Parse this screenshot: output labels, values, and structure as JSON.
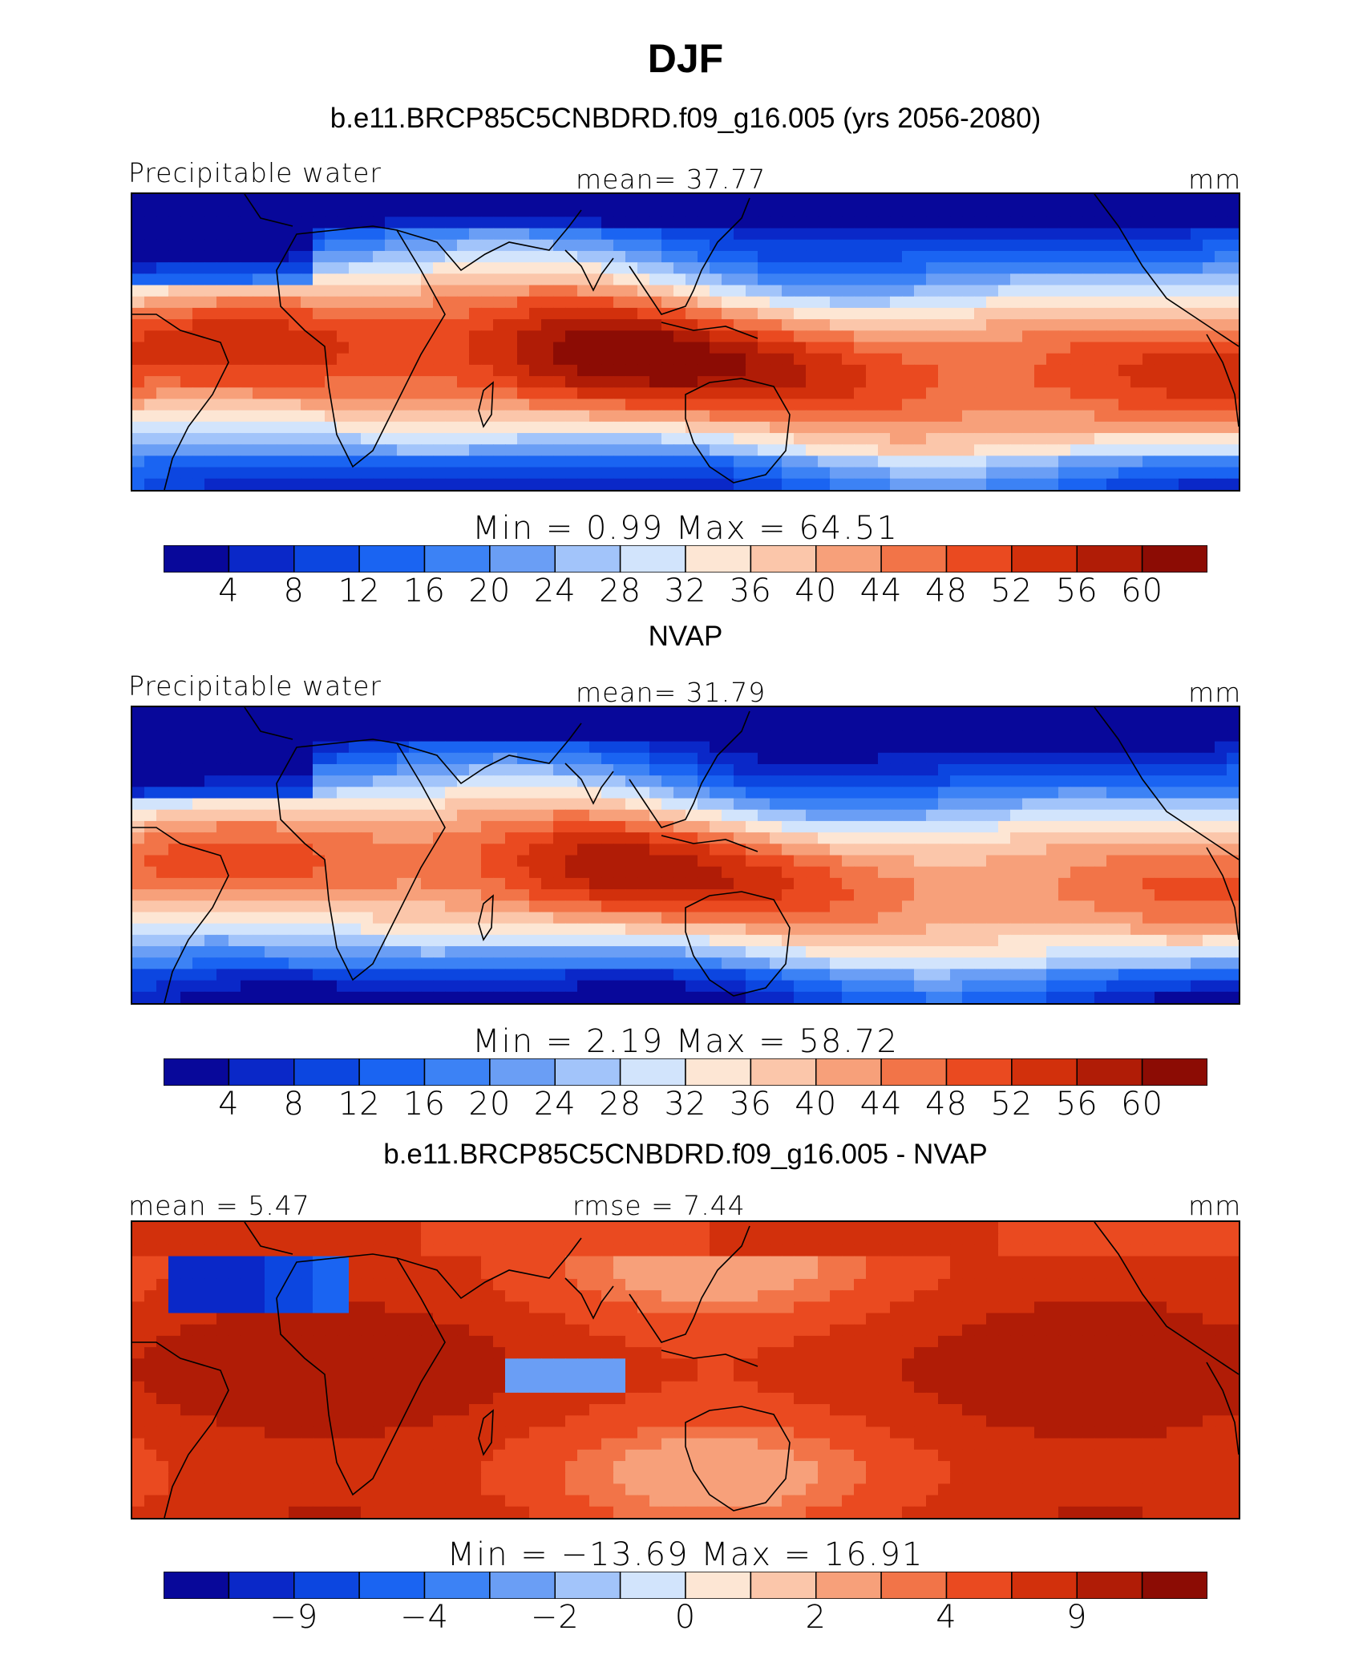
{
  "title": "DJF",
  "palette": [
    "#08089a",
    "#0a28c8",
    "#0c46e0",
    "#1a64f2",
    "#3c82f5",
    "#6a9ef5",
    "#a2c4fa",
    "#d2e4fc",
    "#fde6d4",
    "#fbc6aa",
    "#f7a07a",
    "#f27448",
    "#ea4a20",
    "#d2300c",
    "#b01c06",
    "#8c0c04"
  ],
  "panels": [
    {
      "subtitle": "b.e11.BRCP85C5CNBDRD.f09_g16.005 (yrs 2056-2080)",
      "left_label": "Precipitable water",
      "center_label": "mean=  37.77",
      "right_label": "mm",
      "minmax": "Min =   0.99 Max =  64.51",
      "colorbar_ticks": [
        "4",
        "8",
        "12",
        "16",
        "20",
        "24",
        "28",
        "32",
        "36",
        "40",
        "44",
        "48",
        "52",
        "56",
        "60"
      ],
      "field_type": "absolute"
    },
    {
      "subtitle": "NVAP",
      "left_label": "Precipitable water",
      "center_label": "mean=  31.79",
      "right_label": "mm",
      "minmax": "Min =   2.19 Max =  58.72",
      "colorbar_ticks": [
        "4",
        "8",
        "12",
        "16",
        "20",
        "24",
        "28",
        "32",
        "36",
        "40",
        "44",
        "48",
        "52",
        "56",
        "60"
      ],
      "field_type": "absolute"
    },
    {
      "subtitle": "b.e11.BRCP85C5CNBDRD.f09_g16.005 - NVAP",
      "left_label": "mean =   5.47",
      "center_label": "rmse =   7.44",
      "right_label": "mm",
      "minmax": "Min = −13.69 Max =  16.91",
      "colorbar_ticks": [
        "−9",
        "−4",
        "−2",
        "0",
        "2",
        "4",
        "9"
      ],
      "field_type": "difference"
    }
  ]
}
